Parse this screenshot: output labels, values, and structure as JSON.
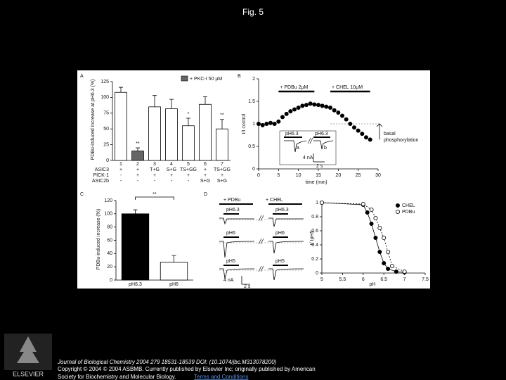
{
  "title": "Fig. 5",
  "figure": {
    "panel_a": {
      "label": "A",
      "ylabel": "PDBu-induced increase at pH6.3 (%)",
      "legend": "+ PKC-I 50 μM",
      "ylim": [
        0,
        125
      ],
      "yticks": [
        0,
        25,
        50,
        75,
        100,
        125
      ],
      "categories": [
        "1",
        "2",
        "3",
        "4",
        "5",
        "6",
        "7"
      ],
      "values": [
        108,
        15,
        85,
        82,
        55,
        89,
        50
      ],
      "errors": [
        8,
        5,
        18,
        15,
        12,
        12,
        15
      ],
      "colors": [
        "#ffffff",
        "#666666",
        "#ffffff",
        "#ffffff",
        "#ffffff",
        "#ffffff",
        "#ffffff"
      ],
      "stars": [
        {
          "bar": 1,
          "text": "**"
        },
        {
          "bar": 4,
          "text": "*"
        },
        {
          "bar": 6,
          "text": "**"
        }
      ],
      "rows": [
        {
          "name": "ASIC3",
          "cells": [
            "+",
            "+",
            "T+G",
            "S+G",
            "TS+GG",
            "+",
            "TS+GG"
          ]
        },
        {
          "name": "PICK-1",
          "cells": [
            "-",
            "+",
            "+",
            "+",
            "+",
            "+",
            "+"
          ]
        },
        {
          "name": "ASIC2b",
          "cells": [
            "-",
            "-",
            "-",
            "-",
            "-",
            "S+G",
            "S+G"
          ]
        }
      ]
    },
    "panel_b": {
      "label": "B",
      "ylabel": "I/I control",
      "xlabel": "time (min)",
      "xlim": [
        0,
        30
      ],
      "ylim": [
        0,
        2
      ],
      "xticks": [
        0,
        5,
        10,
        15,
        20,
        25,
        30
      ],
      "yticks": [
        0,
        0.5,
        1,
        1.5,
        2
      ],
      "treatments": [
        {
          "text": "+ PDBu 2μM",
          "start": 5,
          "end": 14
        },
        {
          "text": "+ CHEL 10μM",
          "start": 18,
          "end": 28
        }
      ],
      "x": [
        0,
        1,
        2,
        3,
        4,
        5,
        6,
        7,
        8,
        9,
        10,
        11,
        12,
        13,
        14,
        15,
        16,
        17,
        18,
        19,
        20,
        21,
        22,
        23,
        24,
        25,
        26,
        27,
        28
      ],
      "y": [
        1.0,
        0.97,
        1.0,
        1.02,
        1.0,
        1.05,
        1.15,
        1.22,
        1.28,
        1.32,
        1.36,
        1.4,
        1.42,
        1.45,
        1.43,
        1.42,
        1.4,
        1.38,
        1.36,
        1.3,
        1.25,
        1.18,
        1.1,
        1.0,
        0.92,
        0.85,
        0.78,
        0.7,
        0.65
      ],
      "basal": [
        "basal",
        "phosphorylation"
      ],
      "inset": {
        "left": "pH6.3",
        "right": "pH6.3",
        "a": "a",
        "b": "b",
        "scale_y": "4 nA",
        "scale_x": "2 s"
      }
    },
    "panel_c": {
      "label": "C",
      "ylabel": "PDBu-induced increase (%)",
      "ylim": [
        0,
        120
      ],
      "yticks": [
        0,
        20,
        40,
        60,
        80,
        100,
        120
      ],
      "categories": [
        "pH6.3",
        "pH6"
      ],
      "values": [
        100,
        27
      ],
      "errors": [
        6,
        10
      ],
      "colors": [
        "#000000",
        "#ffffff"
      ],
      "star": "**"
    },
    "panel_d": {
      "label": "D",
      "trace_headers": [
        "+ PDBu",
        "+ CHEL"
      ],
      "trace_rows": [
        [
          "pH6.3",
          "pH6.3"
        ],
        [
          "pH6",
          "pH6"
        ],
        [
          "pH5",
          "pH5"
        ]
      ],
      "scale_y": "4 nA",
      "scale_x": "2 s",
      "ylabel": "I/ IpH5",
      "xlabel": "pH",
      "xlim": [
        5,
        7.5
      ],
      "ylim": [
        0,
        1
      ],
      "xticks": [
        5,
        5.5,
        6,
        6.5,
        7,
        7.5
      ],
      "yticks": [
        0,
        0.2,
        0.4,
        0.6,
        0.8,
        1
      ],
      "series": [
        {
          "name": "CHEL",
          "color": "#000000",
          "x": [
            5,
            6,
            6.1,
            6.2,
            6.3,
            6.4,
            6.5,
            6.6,
            6.8,
            7
          ],
          "values": [
            1,
            0.97,
            0.86,
            0.7,
            0.5,
            0.3,
            0.14,
            0.06,
            0.02,
            0.01
          ]
        },
        {
          "name": "PDBu",
          "color": "#ffffff",
          "x": [
            5,
            6,
            6.2,
            6.3,
            6.4,
            6.5,
            6.6,
            6.7,
            7
          ],
          "values": [
            1,
            0.98,
            0.9,
            0.78,
            0.64,
            0.5,
            0.3,
            0.1,
            0.02
          ]
        }
      ]
    }
  },
  "footer": {
    "logo": "ELSEVIER",
    "citation": [
      "Journal of Biological Chemistry 2004 279 18531-18539 DOI: (10.1074/jbc.M313078200)",
      "Copyright © 2004 © 2004 ASBMB. Currently published by Elsevier Inc; originally published by American",
      "Society for Biochemistry and Molecular Biology."
    ],
    "link": "Terms and Conditions"
  }
}
